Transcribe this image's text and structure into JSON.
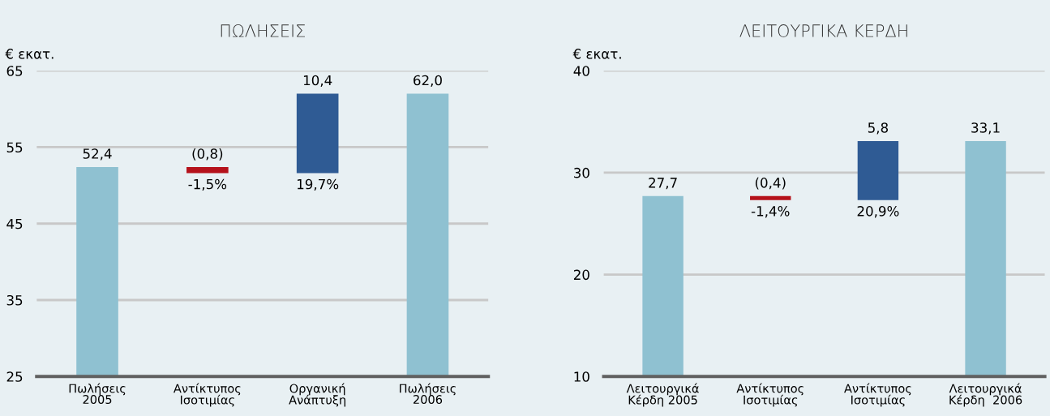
{
  "chart_data": [
    {
      "type": "bar",
      "title": "ΠΩΛΗΣΕΙΣ",
      "ylabel": "€ εκατ.",
      "categories": [
        "Πωλήσεις\n2005",
        "Αντίκτυπος\nΙσοτιμίας",
        "Οργανική\nΑνάπτυξη",
        "Πωλήσεις\n2006"
      ],
      "values": [
        52.4,
        -0.8,
        10.4,
        62.0
      ],
      "base": [
        null,
        52.4,
        51.6,
        null
      ],
      "colors": [
        "#8fc1d1",
        "#b5121b",
        "#2f5b94",
        "#8fc1d1"
      ],
      "value_labels": [
        "52,4",
        "(0,8)",
        "10,4",
        "62,0"
      ],
      "annotations": [
        {
          "text": "-1,5%",
          "x": "Αντίκτυπος\nΙσοτιμίας",
          "y": 51.6
        },
        {
          "text": "19,7%",
          "x": "Οργανική\nΑνάπτυξη",
          "y": 51.6
        }
      ],
      "ylim": [
        25,
        65
      ],
      "yticks": [
        25,
        35,
        45,
        55,
        65
      ],
      "grid": "y"
    },
    {
      "type": "bar",
      "title": "ΛΕΙΤΟΥΡΓΙΚΑ ΚΕΡΔΗ",
      "ylabel": "€ εκατ.",
      "categories": [
        "Λειτουργικά\nΚέρδη 2005",
        "Αντίκτυπος\nΙσοτιμίας",
        "Αντίκτυπος\nΙσοτιμίας",
        "Λειτουργικά\nΚέρδη  2006"
      ],
      "values": [
        27.7,
        -0.4,
        5.8,
        33.1
      ],
      "base": [
        null,
        27.7,
        27.3,
        null
      ],
      "colors": [
        "#8fc1d1",
        "#b5121b",
        "#2f5b94",
        "#8fc1d1"
      ],
      "value_labels": [
        "27,7",
        "(0,4)",
        "5,8",
        "33,1"
      ],
      "annotations": [
        {
          "text": "-1,4%",
          "x": "Αντίκτυπος\nΙσοτιμίας",
          "y": 27.3
        },
        {
          "text": "20,9%",
          "y": 27.3
        }
      ],
      "ylim": [
        10,
        40
      ],
      "yticks": [
        10,
        20,
        30,
        40
      ],
      "grid": "y"
    }
  ]
}
